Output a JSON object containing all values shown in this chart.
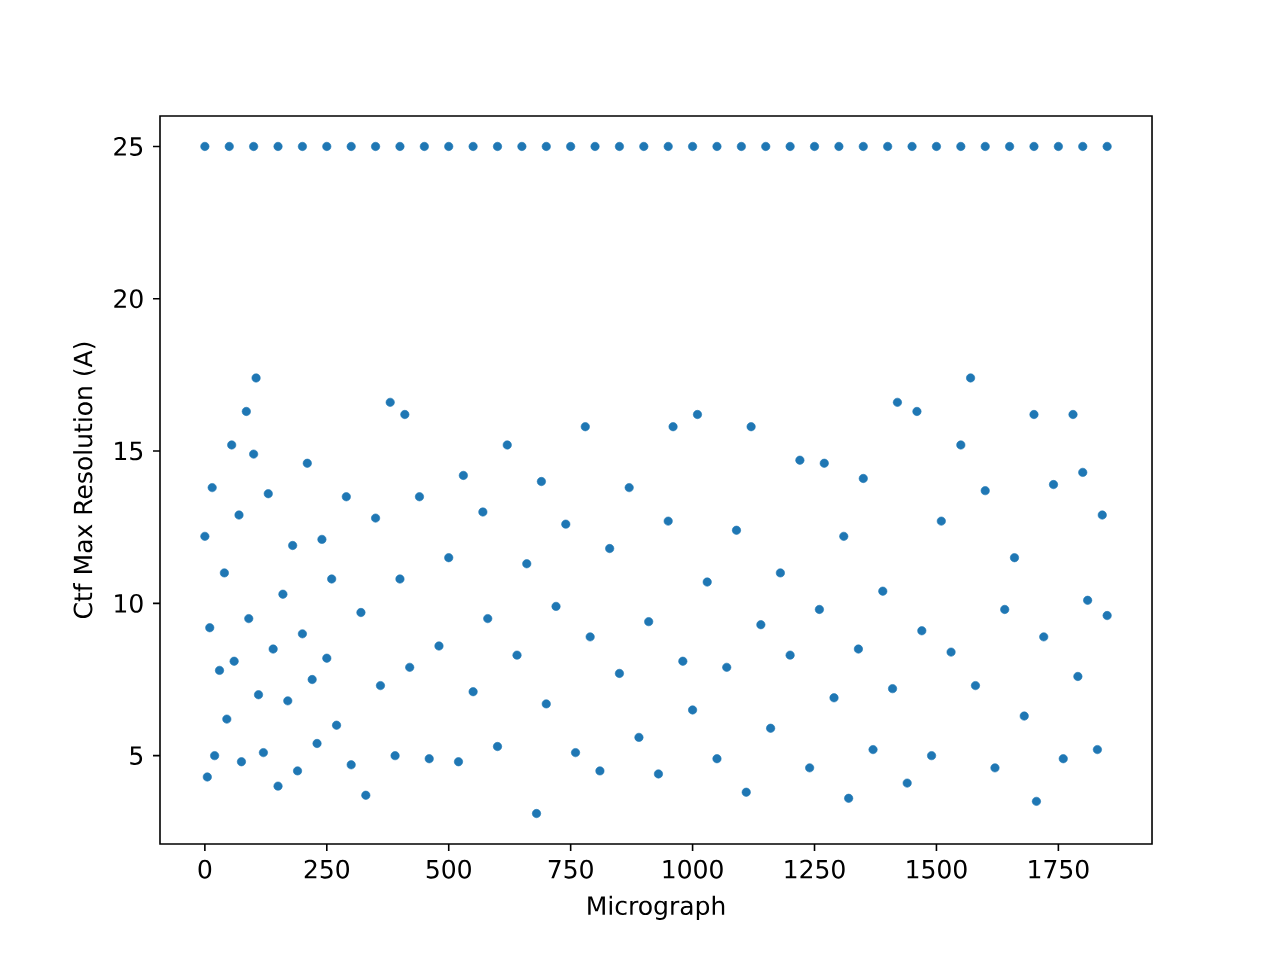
{
  "chart_data": {
    "type": "scatter",
    "xlabel": "Micrograph",
    "ylabel": "Ctf Max Resolution (A)",
    "xlim": [
      -92,
      1942
    ],
    "ylim": [
      2.1,
      26.0
    ],
    "xticks": [
      0,
      250,
      500,
      750,
      1000,
      1250,
      1500,
      1750
    ],
    "yticks": [
      5,
      10,
      15,
      20,
      25
    ],
    "marker": "circle",
    "grid": false,
    "series": [
      {
        "color": "#1f77b4",
        "x": [
          0,
          50,
          100,
          150,
          200,
          250,
          300,
          350,
          400,
          450,
          500,
          550,
          600,
          650,
          700,
          750,
          800,
          850,
          900,
          950,
          1000,
          1050,
          1100,
          1150,
          1200,
          1250,
          1300,
          1350,
          1400,
          1450,
          1500,
          1550,
          1600,
          1650,
          1700,
          1750,
          1800,
          1850,
          0,
          5,
          10,
          15,
          20,
          30,
          40,
          45,
          55,
          60,
          70,
          75,
          85,
          90,
          100,
          105,
          110,
          120,
          130,
          140,
          150,
          160,
          170,
          180,
          190,
          200,
          210,
          220,
          230,
          240,
          250,
          260,
          270,
          290,
          300,
          320,
          330,
          350,
          360,
          380,
          390,
          400,
          410,
          420,
          440,
          460,
          480,
          500,
          520,
          530,
          550,
          570,
          580,
          600,
          620,
          640,
          660,
          680,
          690,
          700,
          720,
          740,
          760,
          780,
          790,
          810,
          830,
          850,
          870,
          890,
          910,
          930,
          950,
          960,
          980,
          1000,
          1010,
          1030,
          1050,
          1070,
          1090,
          1110,
          1120,
          1140,
          1160,
          1180,
          1200,
          1220,
          1240,
          1260,
          1270,
          1290,
          1310,
          1320,
          1340,
          1350,
          1370,
          1390,
          1410,
          1420,
          1440,
          1460,
          1470,
          1490,
          1510,
          1530,
          1550,
          1570,
          1580,
          1600,
          1620,
          1640,
          1660,
          1680,
          1700,
          1705,
          1720,
          1740,
          1760,
          1780,
          1790,
          1800,
          1810,
          1830,
          1840,
          1850
        ],
        "values": [
          25,
          25,
          25,
          25,
          25,
          25,
          25,
          25,
          25,
          25,
          25,
          25,
          25,
          25,
          25,
          25,
          25,
          25,
          25,
          25,
          25,
          25,
          25,
          25,
          25,
          25,
          25,
          25,
          25,
          25,
          25,
          25,
          25,
          25,
          25,
          25,
          25,
          25,
          12.2,
          4.3,
          9.2,
          13.8,
          5.0,
          7.8,
          11.0,
          6.2,
          15.2,
          8.1,
          12.9,
          4.8,
          16.3,
          9.5,
          14.9,
          17.4,
          7.0,
          5.1,
          13.6,
          8.5,
          4.0,
          10.3,
          6.8,
          11.9,
          4.5,
          9.0,
          14.6,
          7.5,
          5.4,
          12.1,
          8.2,
          10.8,
          6.0,
          13.5,
          4.7,
          9.7,
          3.7,
          12.8,
          7.3,
          16.6,
          5.0,
          10.8,
          16.2,
          7.9,
          13.5,
          4.9,
          8.6,
          11.5,
          4.8,
          14.2,
          7.1,
          13.0,
          9.5,
          5.3,
          15.2,
          8.3,
          11.3,
          3.1,
          14.0,
          6.7,
          9.9,
          12.6,
          5.1,
          15.8,
          8.9,
          4.5,
          11.8,
          7.7,
          13.8,
          5.6,
          9.4,
          4.4,
          12.7,
          15.8,
          8.1,
          6.5,
          16.2,
          10.7,
          4.9,
          7.9,
          12.4,
          3.8,
          15.8,
          9.3,
          5.9,
          11.0,
          8.3,
          14.7,
          4.6,
          9.8,
          14.6,
          6.9,
          12.2,
          3.6,
          8.5,
          14.1,
          5.2,
          10.4,
          7.2,
          16.6,
          4.1,
          16.3,
          9.1,
          5.0,
          12.7,
          8.4,
          15.2,
          17.4,
          7.3,
          13.7,
          4.6,
          9.8,
          11.5,
          6.3,
          16.2,
          3.5,
          8.9,
          13.9,
          4.9,
          16.2,
          7.6,
          14.3,
          10.1,
          5.2,
          12.9,
          9.6
        ]
      }
    ]
  }
}
